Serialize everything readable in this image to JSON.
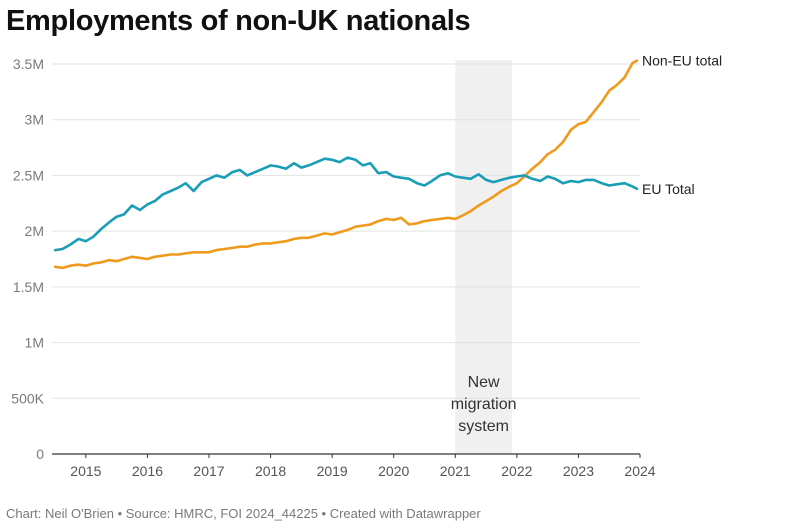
{
  "title": "Employments of non-UK nationals",
  "footer": "Chart: Neil O'Brien • Source: HMRC, FOI 2024_44225 • Created with Datawrapper",
  "chart_data": {
    "type": "line",
    "title": "Employments of non-UK nationals",
    "xlabel": "",
    "ylabel": "",
    "xlim": [
      2014.45,
      2024.0
    ],
    "ylim": [
      0,
      3500000
    ],
    "grid": true,
    "y_ticks": [
      {
        "value": 0,
        "label": "0"
      },
      {
        "value": 500000,
        "label": "500K"
      },
      {
        "value": 1000000,
        "label": "1M"
      },
      {
        "value": 1500000,
        "label": "1.5M"
      },
      {
        "value": 2000000,
        "label": "2M"
      },
      {
        "value": 2500000,
        "label": "2.5M"
      },
      {
        "value": 3000000,
        "label": "3M"
      },
      {
        "value": 3500000,
        "label": "3.5M"
      }
    ],
    "x_ticks": [
      {
        "value": 2015,
        "label": "2015"
      },
      {
        "value": 2016,
        "label": "2016"
      },
      {
        "value": 2017,
        "label": "2017"
      },
      {
        "value": 2018,
        "label": "2018"
      },
      {
        "value": 2019,
        "label": "2019"
      },
      {
        "value": 2020,
        "label": "2020"
      },
      {
        "value": 2021,
        "label": "2021"
      },
      {
        "value": 2022,
        "label": "2022"
      },
      {
        "value": 2023,
        "label": "2023"
      },
      {
        "value": 2024,
        "label": "2024"
      }
    ],
    "shaded_region": {
      "from": 2021.0,
      "to": 2021.92,
      "label_lines": [
        "New",
        "migration",
        "system"
      ],
      "color": "#f0f0f0"
    },
    "series": [
      {
        "name": "Non-EU total",
        "color": "#f09a1d",
        "x": [
          2014.5,
          2014.62,
          2014.75,
          2014.88,
          2015.0,
          2015.12,
          2015.25,
          2015.38,
          2015.5,
          2015.62,
          2015.75,
          2015.88,
          2016.0,
          2016.12,
          2016.25,
          2016.38,
          2016.5,
          2016.62,
          2016.75,
          2016.88,
          2017.0,
          2017.12,
          2017.25,
          2017.38,
          2017.5,
          2017.62,
          2017.75,
          2017.88,
          2018.0,
          2018.12,
          2018.25,
          2018.38,
          2018.5,
          2018.62,
          2018.75,
          2018.88,
          2019.0,
          2019.12,
          2019.25,
          2019.38,
          2019.5,
          2019.62,
          2019.75,
          2019.88,
          2020.0,
          2020.12,
          2020.25,
          2020.38,
          2020.5,
          2020.62,
          2020.75,
          2020.88,
          2021.0,
          2021.12,
          2021.25,
          2021.38,
          2021.5,
          2021.62,
          2021.75,
          2021.88,
          2022.0,
          2022.12,
          2022.25,
          2022.38,
          2022.5,
          2022.62,
          2022.75,
          2022.88,
          2023.0,
          2023.12,
          2023.25,
          2023.38,
          2023.5,
          2023.62,
          2023.75,
          2023.88,
          2023.95
        ],
        "values": [
          1680000,
          1670000,
          1690000,
          1700000,
          1690000,
          1710000,
          1720000,
          1740000,
          1730000,
          1750000,
          1770000,
          1760000,
          1750000,
          1770000,
          1780000,
          1790000,
          1790000,
          1800000,
          1810000,
          1810000,
          1810000,
          1830000,
          1840000,
          1850000,
          1860000,
          1860000,
          1880000,
          1890000,
          1890000,
          1900000,
          1910000,
          1930000,
          1940000,
          1940000,
          1960000,
          1980000,
          1970000,
          1990000,
          2010000,
          2040000,
          2050000,
          2060000,
          2090000,
          2110000,
          2100000,
          2120000,
          2060000,
          2070000,
          2090000,
          2100000,
          2110000,
          2120000,
          2110000,
          2140000,
          2180000,
          2230000,
          2270000,
          2310000,
          2360000,
          2400000,
          2430000,
          2490000,
          2560000,
          2620000,
          2690000,
          2730000,
          2800000,
          2910000,
          2960000,
          2980000,
          3070000,
          3160000,
          3260000,
          3310000,
          3380000,
          3510000,
          3530000
        ]
      },
      {
        "name": "EU Total",
        "color": "#1a9db6",
        "x": [
          2014.5,
          2014.62,
          2014.75,
          2014.88,
          2015.0,
          2015.12,
          2015.25,
          2015.38,
          2015.5,
          2015.62,
          2015.75,
          2015.88,
          2016.0,
          2016.12,
          2016.25,
          2016.38,
          2016.5,
          2016.62,
          2016.75,
          2016.88,
          2017.0,
          2017.12,
          2017.25,
          2017.38,
          2017.5,
          2017.62,
          2017.75,
          2017.88,
          2018.0,
          2018.12,
          2018.25,
          2018.38,
          2018.5,
          2018.62,
          2018.75,
          2018.88,
          2019.0,
          2019.12,
          2019.25,
          2019.38,
          2019.5,
          2019.62,
          2019.75,
          2019.88,
          2020.0,
          2020.12,
          2020.25,
          2020.38,
          2020.5,
          2020.62,
          2020.75,
          2020.88,
          2021.0,
          2021.12,
          2021.25,
          2021.38,
          2021.5,
          2021.62,
          2021.75,
          2021.88,
          2022.0,
          2022.12,
          2022.25,
          2022.38,
          2022.5,
          2022.62,
          2022.75,
          2022.88,
          2023.0,
          2023.12,
          2023.25,
          2023.38,
          2023.5,
          2023.62,
          2023.75,
          2023.88,
          2023.95
        ],
        "values": [
          1830000,
          1840000,
          1880000,
          1930000,
          1910000,
          1950000,
          2020000,
          2080000,
          2130000,
          2150000,
          2230000,
          2190000,
          2240000,
          2270000,
          2330000,
          2360000,
          2390000,
          2430000,
          2360000,
          2440000,
          2470000,
          2500000,
          2480000,
          2530000,
          2550000,
          2500000,
          2530000,
          2560000,
          2590000,
          2580000,
          2560000,
          2610000,
          2570000,
          2590000,
          2620000,
          2650000,
          2640000,
          2620000,
          2660000,
          2640000,
          2590000,
          2610000,
          2520000,
          2530000,
          2490000,
          2480000,
          2470000,
          2430000,
          2410000,
          2450000,
          2500000,
          2520000,
          2490000,
          2480000,
          2470000,
          2510000,
          2460000,
          2440000,
          2460000,
          2480000,
          2490000,
          2500000,
          2470000,
          2450000,
          2490000,
          2470000,
          2430000,
          2450000,
          2440000,
          2460000,
          2460000,
          2430000,
          2410000,
          2420000,
          2430000,
          2400000,
          2380000
        ]
      }
    ]
  }
}
